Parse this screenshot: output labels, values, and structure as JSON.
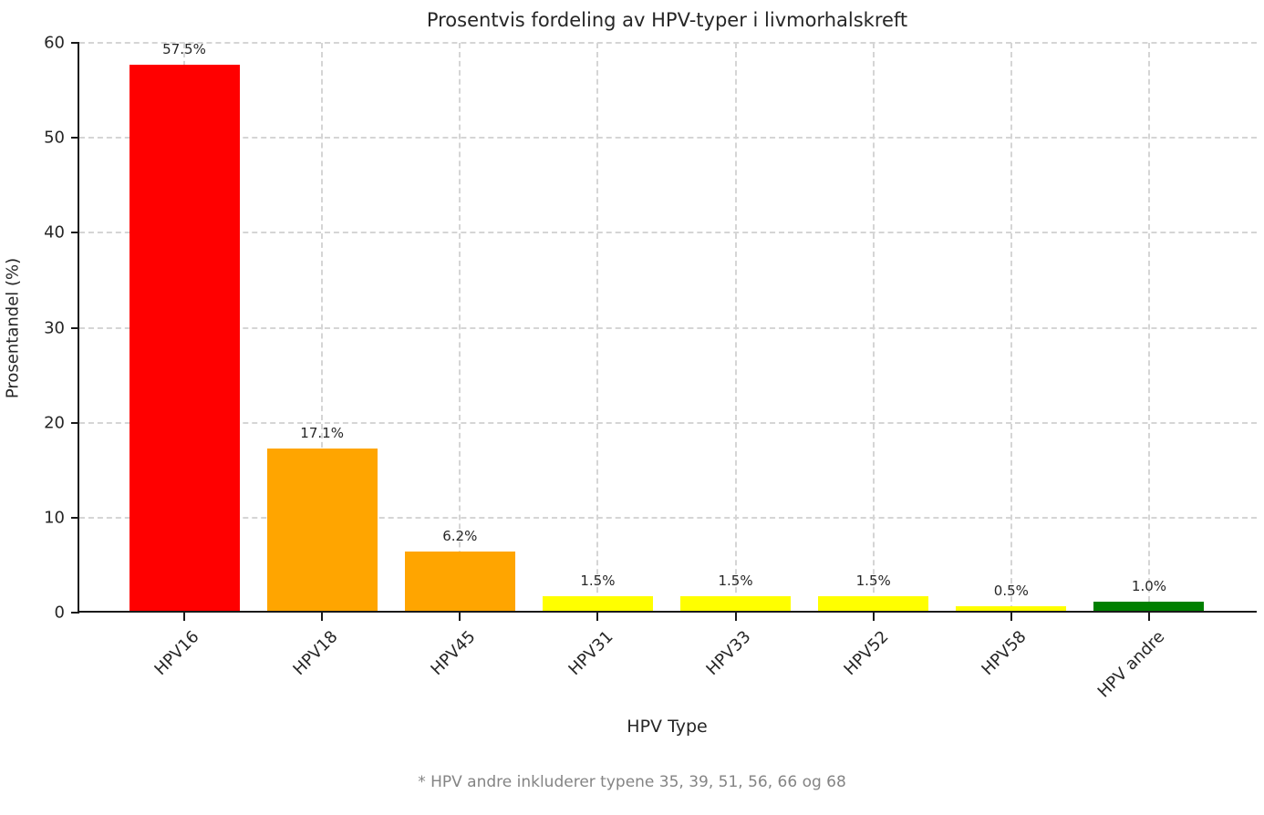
{
  "chart_data": {
    "type": "bar",
    "title": "Prosentvis fordeling av HPV-typer i livmorhalskreft",
    "xlabel": "HPV Type",
    "ylabel": "Prosentandel (%)",
    "categories": [
      "HPV16",
      "HPV18",
      "HPV45",
      "HPV31",
      "HPV33",
      "HPV52",
      "HPV58",
      "HPV andre"
    ],
    "values": [
      57.5,
      17.1,
      6.2,
      1.5,
      1.5,
      1.5,
      0.5,
      1.0
    ],
    "bar_labels": [
      "57.5%",
      "17.1%",
      "6.2%",
      "1.5%",
      "1.5%",
      "1.5%",
      "0.5%",
      "1.0%"
    ],
    "bar_colors": [
      "#ff0000",
      "#ffa500",
      "#ffa500",
      "#ffff00",
      "#ffff00",
      "#ffff00",
      "#ffff00",
      "#008000"
    ],
    "ylim": [
      0,
      60
    ],
    "yticks": [
      0,
      10,
      20,
      30,
      40,
      50,
      60
    ],
    "grid": "dashed, horizontal and vertical",
    "legend": "none",
    "footnote": "* HPV andre inkluderer typene 35, 39, 51, 56, 66 og 68",
    "colors": {
      "red": "#ff0000",
      "orange": "#ffa500",
      "yellow": "#ffff00",
      "green": "#008000",
      "grid": "#d5d5d5",
      "spine": "#1a1a1a",
      "footnote": "#848484",
      "text": "#262626"
    }
  }
}
